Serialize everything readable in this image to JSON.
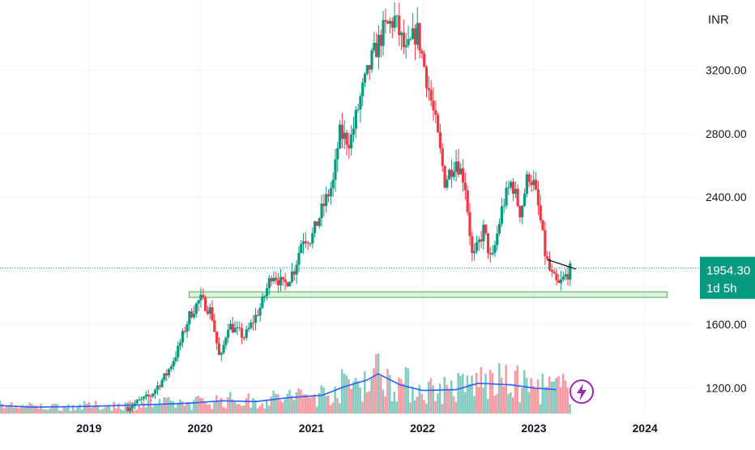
{
  "chart_data": {
    "type": "candlestick",
    "currency": "INR",
    "y_ticks": [
      "1200.00",
      "1600.00",
      "2400.00",
      "2800.00",
      "3200.00"
    ],
    "y_tick_values": [
      1200,
      1600,
      2400,
      2800,
      3200
    ],
    "x_ticks": [
      "2019",
      "2020",
      "2021",
      "2022",
      "2023",
      "2024"
    ],
    "x_tick_values": [
      2019,
      2020,
      2021,
      2022,
      2023,
      2024
    ],
    "x_range": [
      2018.2,
      2024.45
    ],
    "y_range": [
      1040,
      3640
    ],
    "last_price": "1954.30",
    "last_price_value": 1954.3,
    "countdown": "1d 5h",
    "support_zone": {
      "x_start": 2019.9,
      "x_end": 2024.2,
      "y_low": 1770,
      "y_high": 1805
    },
    "trendline": {
      "x_start": 2023.12,
      "y_start": 2008,
      "x_end": 2023.38,
      "y_end": 1948
    },
    "price_path": [
      [
        2019.35,
        1080
      ],
      [
        2019.55,
        1150
      ],
      [
        2019.7,
        1290
      ],
      [
        2019.8,
        1440
      ],
      [
        2019.9,
        1650
      ],
      [
        2020.0,
        1760
      ],
      [
        2020.1,
        1680
      ],
      [
        2020.18,
        1360
      ],
      [
        2020.25,
        1600
      ],
      [
        2020.4,
        1520
      ],
      [
        2020.55,
        1720
      ],
      [
        2020.65,
        1930
      ],
      [
        2020.75,
        1840
      ],
      [
        2020.85,
        1950
      ],
      [
        2020.92,
        2150
      ],
      [
        2021.0,
        2140
      ],
      [
        2021.1,
        2330
      ],
      [
        2021.2,
        2500
      ],
      [
        2021.25,
        2800
      ],
      [
        2021.35,
        2750
      ],
      [
        2021.45,
        3050
      ],
      [
        2021.55,
        3280
      ],
      [
        2021.65,
        3450
      ],
      [
        2021.75,
        3520
      ],
      [
        2021.85,
        3300
      ],
      [
        2021.95,
        3450
      ],
      [
        2022.05,
        3100
      ],
      [
        2022.12,
        2850
      ],
      [
        2022.2,
        2500
      ],
      [
        2022.3,
        2640
      ],
      [
        2022.38,
        2500
      ],
      [
        2022.45,
        2000
      ],
      [
        2022.55,
        2200
      ],
      [
        2022.62,
        1980
      ],
      [
        2022.72,
        2350
      ],
      [
        2022.8,
        2500
      ],
      [
        2022.88,
        2300
      ],
      [
        2022.95,
        2550
      ],
      [
        2023.0,
        2480
      ],
      [
        2023.05,
        2300
      ],
      [
        2023.1,
        2050
      ],
      [
        2023.15,
        1920
      ],
      [
        2023.22,
        1840
      ],
      [
        2023.28,
        1900
      ],
      [
        2023.34,
        1954
      ]
    ],
    "volume_ma_path": [
      [
        2018.2,
        1090
      ],
      [
        2018.5,
        1080
      ],
      [
        2019.0,
        1085
      ],
      [
        2019.5,
        1095
      ],
      [
        2019.9,
        1105
      ],
      [
        2020.2,
        1120
      ],
      [
        2020.5,
        1115
      ],
      [
        2020.8,
        1140
      ],
      [
        2021.1,
        1155
      ],
      [
        2021.3,
        1210
      ],
      [
        2021.5,
        1250
      ],
      [
        2021.6,
        1290
      ],
      [
        2021.8,
        1220
      ],
      [
        2022.0,
        1185
      ],
      [
        2022.3,
        1190
      ],
      [
        2022.5,
        1230
      ],
      [
        2022.8,
        1220
      ],
      [
        2023.0,
        1200
      ],
      [
        2023.2,
        1190
      ]
    ]
  },
  "tools": {
    "lightning_icon": "lightning-icon"
  }
}
